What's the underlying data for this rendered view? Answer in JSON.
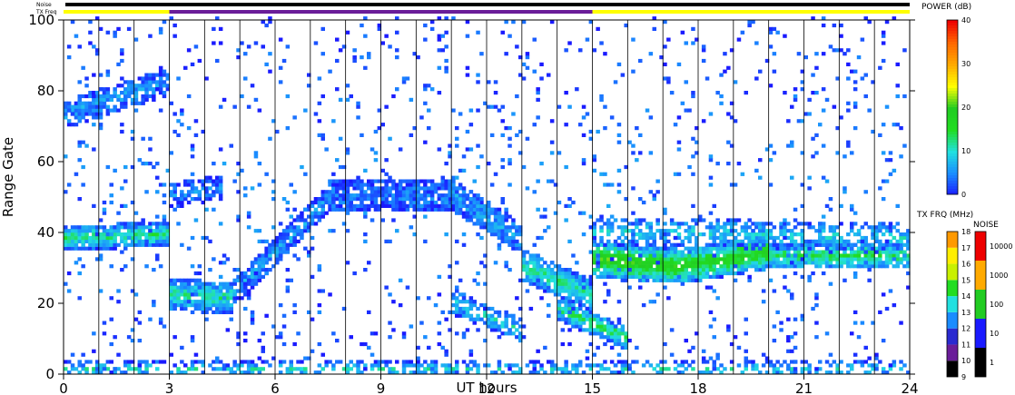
{
  "chart_data": {
    "type": "heatmap",
    "title": "",
    "xlabel": "UT hours",
    "ylabel": "Range Gate",
    "xlim": [
      0,
      24
    ],
    "ylim": [
      0,
      100
    ],
    "x_ticks": [
      "0",
      "3",
      "6",
      "9",
      "12",
      "15",
      "18",
      "21",
      "24"
    ],
    "y_ticks": [
      "0",
      "20",
      "40",
      "60",
      "80",
      "100"
    ],
    "grid": "vertical lines every hour",
    "status_rows": {
      "noise_label": "Noise",
      "txfreq_label": "TX Freq",
      "txfreq_segments": [
        {
          "start": 0,
          "end": 3,
          "color": "#ffff00"
        },
        {
          "start": 3,
          "end": 15,
          "color": "#6a1d99"
        },
        {
          "start": 15,
          "end": 24,
          "color": "#ffff00"
        }
      ]
    },
    "scatter_bands": [
      {
        "t0": 0,
        "t1": 3,
        "g0": 38,
        "g1": 39,
        "width": 5,
        "level": 13,
        "density": 0.9
      },
      {
        "t0": 0,
        "t1": 3,
        "g0": 73,
        "g1": 82,
        "width": 6,
        "level": 6,
        "density": 0.7
      },
      {
        "t0": 3,
        "t1": 4.8,
        "g0": 22,
        "g1": 21,
        "width": 7,
        "level": 12,
        "density": 0.9
      },
      {
        "t0": 3,
        "t1": 4.5,
        "g0": 50,
        "g1": 52,
        "width": 5,
        "level": 5,
        "density": 0.6
      },
      {
        "t0": 4.8,
        "t1": 7.5,
        "g0": 23,
        "g1": 48,
        "width": 6,
        "level": 6,
        "density": 0.8
      },
      {
        "t0": 7.5,
        "t1": 11,
        "g0": 50,
        "g1": 50,
        "width": 8,
        "level": 4,
        "density": 0.85
      },
      {
        "t0": 11,
        "t1": 13,
        "g0": 50,
        "g1": 38,
        "width": 7,
        "level": 6,
        "density": 0.85
      },
      {
        "t0": 13,
        "t1": 15,
        "g0": 30,
        "g1": 22,
        "width": 7,
        "level": 12,
        "density": 0.9
      },
      {
        "t0": 11,
        "t1": 13,
        "g0": 20,
        "g1": 12,
        "width": 5,
        "level": 10,
        "density": 0.6
      },
      {
        "t0": 14,
        "t1": 16,
        "g0": 18,
        "g1": 10,
        "width": 5,
        "level": 14,
        "density": 0.8
      },
      {
        "t0": 15,
        "t1": 17.5,
        "g0": 32,
        "g1": 30,
        "width": 8,
        "level": 20,
        "density": 0.95
      },
      {
        "t0": 17.5,
        "t1": 20,
        "g0": 30,
        "g1": 34,
        "width": 8,
        "level": 18,
        "density": 0.95
      },
      {
        "t0": 20,
        "t1": 24,
        "g0": 33,
        "g1": 33,
        "width": 6,
        "level": 14,
        "density": 0.9
      },
      {
        "t0": 15,
        "t1": 24,
        "g0": 40,
        "g1": 38,
        "width": 6,
        "level": 9,
        "density": 0.5
      },
      {
        "t0": 0,
        "t1": 24,
        "g0": 1,
        "g1": 1,
        "width": 3,
        "level": 10,
        "density": 0.4
      },
      {
        "t0": 0,
        "t1": 24,
        "g0": 50,
        "g1": 50,
        "width": 100,
        "level": 4,
        "density": 0.05
      }
    ],
    "colorbars": {
      "power": {
        "label": "POWER (dB)",
        "ticks": [
          "0",
          "10",
          "20",
          "30",
          "40"
        ],
        "range": [
          0,
          40
        ]
      },
      "txfreq": {
        "label": "TX FRQ (MHz)",
        "ticks": [
          "9",
          "10",
          "11",
          "12",
          "13",
          "14",
          "15",
          "16",
          "17",
          "18"
        ]
      },
      "noise": {
        "label": "NOISE",
        "ticks": [
          "1",
          "10",
          "100",
          "1000",
          "10000"
        ]
      }
    }
  }
}
